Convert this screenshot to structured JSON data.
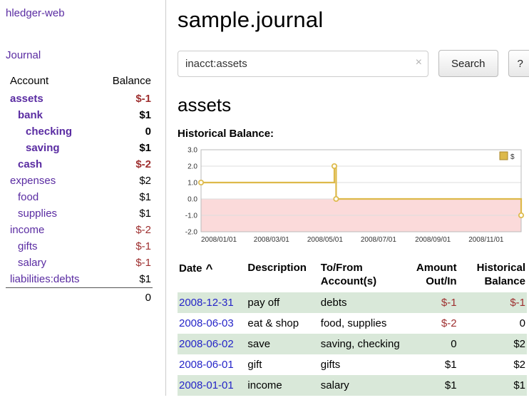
{
  "app": {
    "title": "hledger-web",
    "nav_journal": "Journal"
  },
  "colors": {
    "link_purple": "#5a2ca2",
    "link_blue": "#2525c8",
    "negative_red": "#9e2f2f",
    "row_stripe_green": "#d9e8d9"
  },
  "sidebar": {
    "header": {
      "account": "Account",
      "balance": "Balance"
    },
    "accounts": [
      {
        "name": "assets",
        "balance": "$-1",
        "indent": 0,
        "bold": true,
        "negative": true
      },
      {
        "name": "bank",
        "balance": "$1",
        "indent": 1,
        "bold": true,
        "negative": false
      },
      {
        "name": "checking",
        "balance": "0",
        "indent": 2,
        "bold": true,
        "negative": false
      },
      {
        "name": "saving",
        "balance": "$1",
        "indent": 2,
        "bold": true,
        "negative": false
      },
      {
        "name": "cash",
        "balance": "$-2",
        "indent": 1,
        "bold": true,
        "negative": true
      },
      {
        "name": "expenses",
        "balance": "$2",
        "indent": 0,
        "bold": false,
        "negative": false
      },
      {
        "name": "food",
        "balance": "$1",
        "indent": 1,
        "bold": false,
        "negative": false
      },
      {
        "name": "supplies",
        "balance": "$1",
        "indent": 1,
        "bold": false,
        "negative": false
      },
      {
        "name": "income",
        "balance": "$-2",
        "indent": 0,
        "bold": false,
        "negative": true
      },
      {
        "name": "gifts",
        "balance": "$-1",
        "indent": 1,
        "bold": false,
        "negative": true
      },
      {
        "name": "salary",
        "balance": "$-1",
        "indent": 1,
        "bold": false,
        "negative": true
      },
      {
        "name": "liabilities:debts",
        "balance": "$1",
        "indent": 0,
        "bold": false,
        "negative": false
      }
    ],
    "total": "0"
  },
  "main": {
    "title": "sample.journal",
    "search": {
      "value": "inacct:assets",
      "clear_icon": "×",
      "button": "Search",
      "help_button": "?"
    },
    "account_heading": "assets",
    "chart_label": "Historical Balance:"
  },
  "chart_data": {
    "type": "line",
    "step": true,
    "legend": "$",
    "legend_position": "top-right",
    "line_color": "#ddb94a",
    "below_zero_fill": "#fbdada",
    "ylim": [
      -2,
      3
    ],
    "yticks": [
      3,
      2,
      1,
      0,
      -1,
      -2
    ],
    "xticks": [
      "2008/01/01",
      "2008/03/01",
      "2008/05/01",
      "2008/07/01",
      "2008/09/01",
      "2008/11/01"
    ],
    "x_domain": [
      "2008-01-01",
      "2008-12-31"
    ],
    "series": [
      {
        "name": "$",
        "points": [
          [
            "2008-01-01",
            1
          ],
          [
            "2008-06-01",
            2
          ],
          [
            "2008-06-03",
            0
          ],
          [
            "2008-12-31",
            -1
          ]
        ]
      }
    ]
  },
  "table": {
    "headers": {
      "date": "Date",
      "sort_indicator": "^",
      "description": "Description",
      "accounts": "To/From Account(s)",
      "amount": "Amount Out/In",
      "balance": "Historical Balance"
    },
    "rows": [
      {
        "date": "2008-12-31",
        "description": "pay off",
        "accounts": "debts",
        "amount": "$-1",
        "amount_negative": true,
        "balance": "$-1",
        "balance_negative": true
      },
      {
        "date": "2008-06-03",
        "description": "eat & shop",
        "accounts": "food, supplies",
        "amount": "$-2",
        "amount_negative": true,
        "balance": "0",
        "balance_negative": false
      },
      {
        "date": "2008-06-02",
        "description": "save",
        "accounts": "saving, checking",
        "amount": "0",
        "amount_negative": false,
        "balance": "$2",
        "balance_negative": false
      },
      {
        "date": "2008-06-01",
        "description": "gift",
        "accounts": "gifts",
        "amount": "$1",
        "amount_negative": false,
        "balance": "$2",
        "balance_negative": false
      },
      {
        "date": "2008-01-01",
        "description": "income",
        "accounts": "salary",
        "amount": "$1",
        "amount_negative": false,
        "balance": "$1",
        "balance_negative": false
      }
    ]
  }
}
